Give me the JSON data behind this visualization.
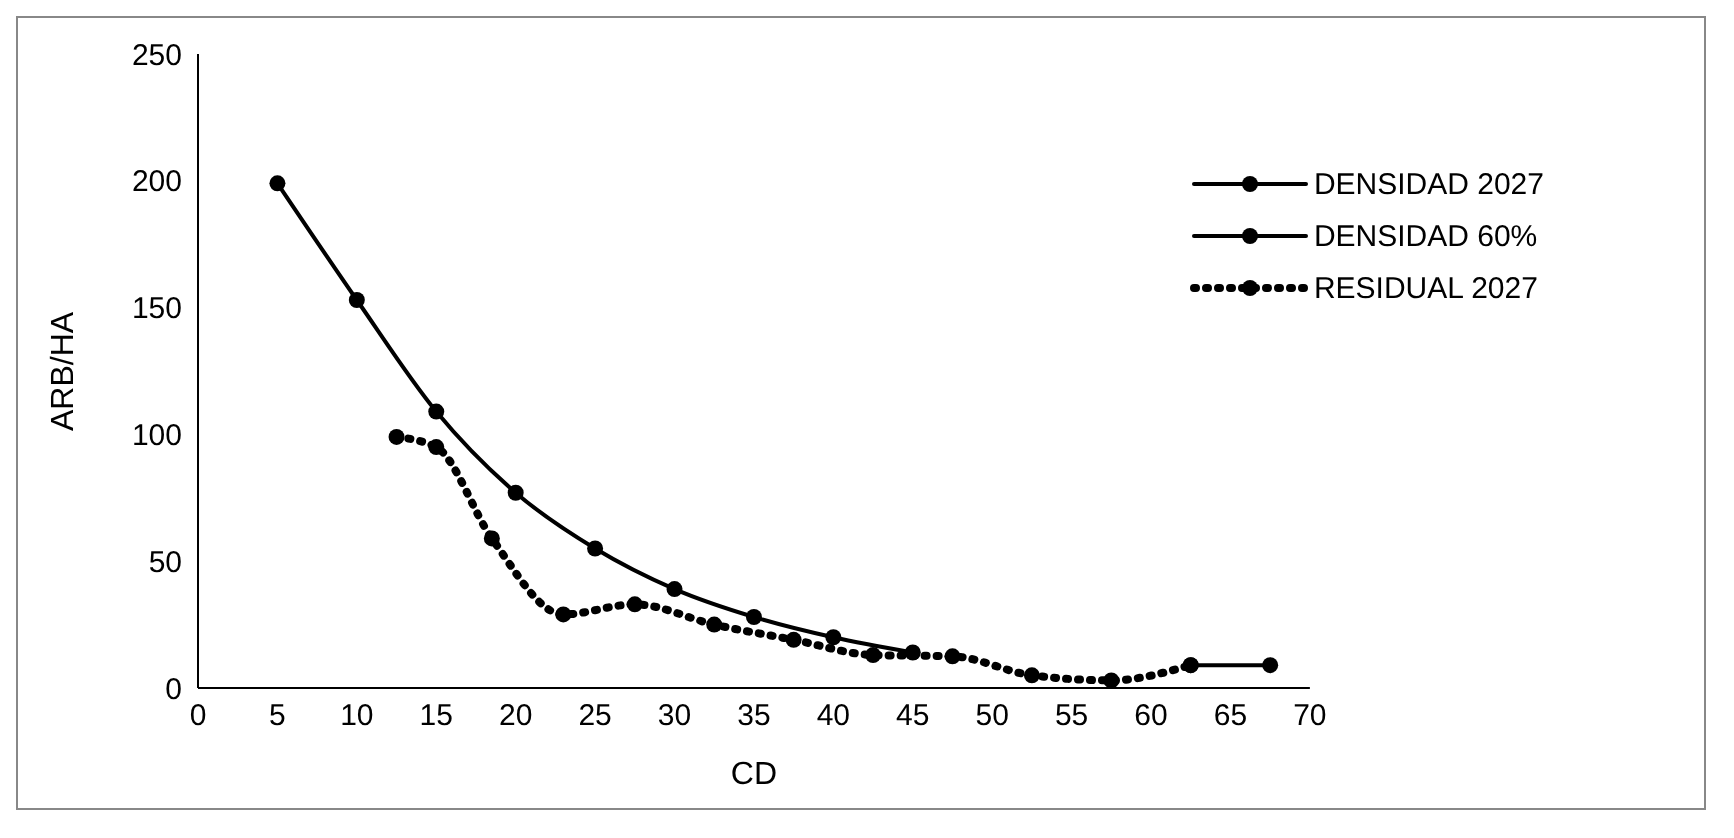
{
  "chart_data": {
    "type": "line",
    "xlabel": "CD",
    "ylabel": "ARB/HA",
    "xlim": [
      0,
      70
    ],
    "xticks": [
      0,
      5,
      10,
      15,
      20,
      25,
      30,
      35,
      40,
      45,
      50,
      55,
      60,
      65,
      70
    ],
    "ylim": [
      0,
      250
    ],
    "yticks": [
      0,
      50,
      100,
      150,
      200,
      250
    ],
    "grid": false,
    "legend": "top right",
    "marker": "circle",
    "series": [
      {
        "name": "DENSIDAD 2027",
        "color": "#000000",
        "line_style": "solid",
        "x": [
          5,
          10,
          15,
          20,
          25,
          30,
          35,
          40,
          45
        ],
        "values": [
          199,
          153,
          109,
          77,
          55,
          39,
          28,
          20,
          14
        ]
      },
      {
        "name": "DENSIDAD 60%",
        "color": "#000000",
        "line_style": "solid",
        "x": [
          62.5,
          67.5
        ],
        "values": [
          9,
          9
        ]
      },
      {
        "name": "RESIDUAL 2027",
        "color": "#000000",
        "line_style": "dotted",
        "x": [
          12.5,
          15,
          18.5,
          23,
          27.5,
          32.5,
          37.5,
          42.5,
          47.5,
          52.5,
          57.5,
          62.5
        ],
        "values": [
          99,
          95,
          59,
          29,
          33,
          25,
          19,
          13,
          12.5,
          5,
          3,
          9
        ]
      }
    ]
  }
}
